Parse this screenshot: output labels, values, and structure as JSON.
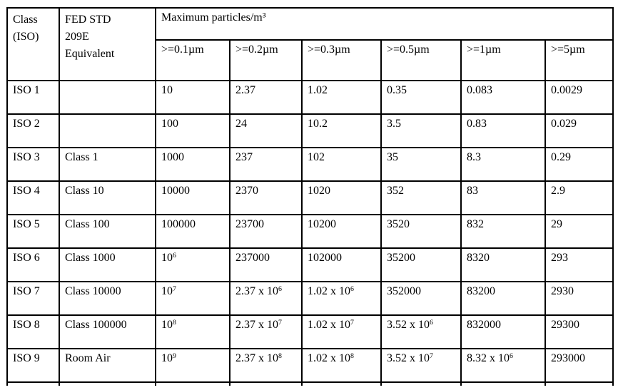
{
  "colors": {
    "background": "#ffffff",
    "border": "#000000",
    "text": "#000000"
  },
  "table": {
    "header": {
      "class_iso": "Class\n(ISO)",
      "fed_std": "FED STD\n209E\nEquivalent",
      "group_title": "Maximum particles/m³",
      "subcols": [
        ">=0.1µm",
        ">=0.2µm",
        ">=0.3µm",
        ">=0.5µm",
        ">=1µm",
        ">=5µm"
      ]
    },
    "rows": [
      {
        "iso": "ISO 1",
        "fed": "",
        "values": [
          "10",
          "2.37",
          "1.02",
          "0.35",
          "0.083",
          "0.0029"
        ]
      },
      {
        "iso": "ISO 2",
        "fed": "",
        "values": [
          "100",
          "24",
          "10.2",
          "3.5",
          "0.83",
          "0.029"
        ]
      },
      {
        "iso": "ISO 3",
        "fed": "Class 1",
        "values": [
          "1000",
          "237",
          "102",
          "35",
          "8.3",
          "0.29"
        ]
      },
      {
        "iso": "ISO 4",
        "fed": "Class 10",
        "values": [
          "10000",
          "2370",
          "1020",
          "352",
          "83",
          "2.9"
        ]
      },
      {
        "iso": "ISO 5",
        "fed": "Class 100",
        "values": [
          "100000",
          "23700",
          "10200",
          "3520",
          "832",
          "29"
        ]
      },
      {
        "iso": "ISO 6",
        "fed": "Class 1000",
        "values": [
          "10^6",
          "237000",
          "102000",
          "35200",
          "8320",
          "293"
        ]
      },
      {
        "iso": "ISO 7",
        "fed": "Class 10000",
        "values": [
          "10^7",
          "2.37 x 10^6",
          "1.02 x 10^6",
          "352000",
          "83200",
          "2930"
        ]
      },
      {
        "iso": "ISO 8",
        "fed": "Class 100000",
        "values": [
          "10^8",
          "2.37 x 10^7",
          "1.02 x 10^7",
          "3.52 x 10^6",
          "832000",
          "29300"
        ]
      },
      {
        "iso": "ISO 9",
        "fed": "Room Air",
        "values": [
          "10^9",
          "2.37 x 10^8",
          "1.02 x 10^8",
          "3.52 x 10^7",
          "8.32 x 10^6",
          "293000"
        ]
      }
    ]
  }
}
